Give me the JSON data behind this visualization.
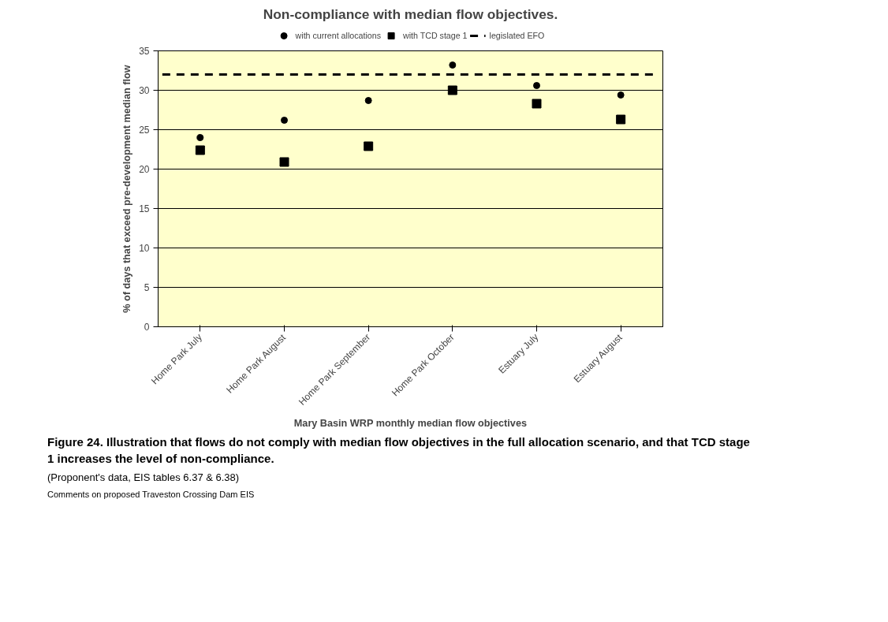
{
  "chart_data": {
    "type": "scatter",
    "title": "Non-compliance with median flow objectives.",
    "xlabel": "Mary Basin WRP monthly median flow objectives",
    "ylabel": "% of days that exceed pre-development median flow",
    "categories": [
      "Home Park July",
      "Home Park August",
      "Home Park September",
      "Home Park October",
      "Estuary July",
      "Estuary August"
    ],
    "series": [
      {
        "name": "with current allocations",
        "color": "#000000",
        "marker": "circle",
        "values": [
          24,
          26.2,
          28.7,
          33.2,
          30.6,
          29.4
        ]
      },
      {
        "name": "with TCD stage 1",
        "color": "#000000",
        "marker": "square",
        "values": [
          22.4,
          20.9,
          22.9,
          30,
          28.3,
          26.3
        ]
      }
    ],
    "ref_lines": [
      {
        "axis": "y",
        "value": 32,
        "label": "legislated EFO",
        "color": "#000000",
        "line_style": "dashed"
      }
    ],
    "ylim": [
      0,
      35
    ],
    "yticks": [
      0,
      5,
      10,
      15,
      20,
      25,
      30,
      35
    ],
    "grid": "y",
    "legend": "top",
    "annotations": [
      "Figure 24. Illustration that flows do not comply with median flow objectives in the full allocation scenario, and that TCD stage 1 increases the level of non-compliance.",
      "(Proponent's data, EIS tables 6.37 & 6.38)",
      "Comments on proposed Traveston Crossing Dam EIS"
    ]
  }
}
